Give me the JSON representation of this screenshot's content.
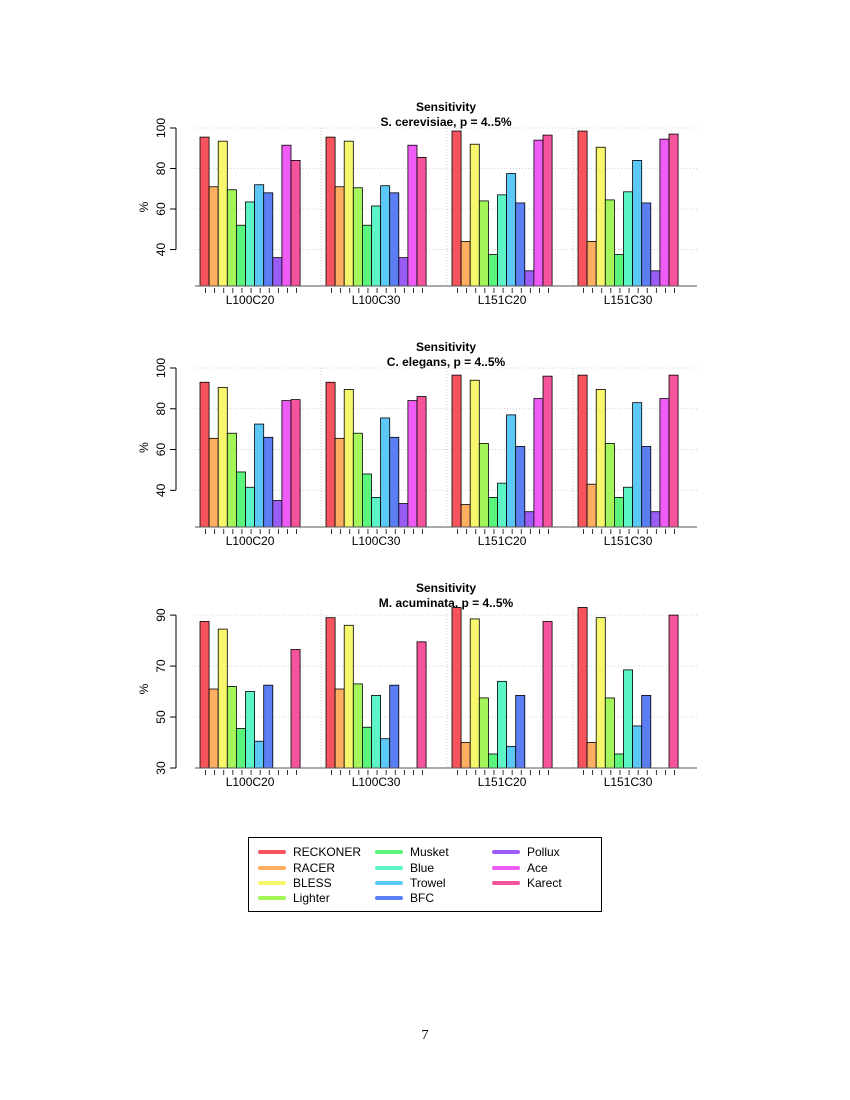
{
  "series": [
    {
      "name": "RECKONER",
      "color": "#f5545c"
    },
    {
      "name": "RACER",
      "color": "#fdae61"
    },
    {
      "name": "BLESS",
      "color": "#f7f76e"
    },
    {
      "name": "Lighter",
      "color": "#a3f55a"
    },
    {
      "name": "Musket",
      "color": "#5cf57c"
    },
    {
      "name": "Blue",
      "color": "#5cf5c8"
    },
    {
      "name": "Trowel",
      "color": "#5cc8f5"
    },
    {
      "name": "BFC",
      "color": "#5c7ef5"
    },
    {
      "name": "Pollux",
      "color": "#9a5cf5"
    },
    {
      "name": "Ace",
      "color": "#ef5cf5"
    },
    {
      "name": "Karect",
      "color": "#f5549c"
    }
  ],
  "chart_data": [
    {
      "type": "bar",
      "title": "Sensitivity",
      "subtitle": "S. cerevisiae, p = 4..5%",
      "ylabel": "%",
      "ylim": [
        22,
        100
      ],
      "yticks": [
        "40",
        "60",
        "80",
        "100"
      ],
      "categories": [
        "L100C20",
        "L100C30",
        "L151C20",
        "L151C30"
      ],
      "values": [
        [
          95.5,
          71,
          93.5,
          69.5,
          52,
          63.5,
          72,
          68,
          36,
          91.5,
          84
        ],
        [
          95.5,
          71,
          93.5,
          70.5,
          52,
          61.5,
          71.5,
          68,
          36,
          91.5,
          85.5
        ],
        [
          98.5,
          44,
          92,
          64,
          37.5,
          67,
          77.5,
          63,
          29.5,
          94,
          96.5
        ],
        [
          98.5,
          44,
          90.5,
          64.5,
          37.5,
          68.5,
          84,
          63,
          29.5,
          94.5,
          97
        ]
      ]
    },
    {
      "type": "bar",
      "title": "Sensitivity",
      "subtitle": "C. elegans, p = 4..5%",
      "ylabel": "%",
      "ylim": [
        22,
        100
      ],
      "yticks": [
        "40",
        "60",
        "80",
        "100"
      ],
      "categories": [
        "L100C20",
        "L100C30",
        "L151C20",
        "L151C30"
      ],
      "values": [
        [
          93,
          65.5,
          90.5,
          68,
          49,
          41.5,
          72.5,
          66,
          35,
          84,
          84.5
        ],
        [
          93,
          65.5,
          89.5,
          68,
          48,
          36.5,
          75.5,
          66,
          33.5,
          84,
          86
        ],
        [
          96.5,
          33,
          94,
          63,
          36.5,
          43.5,
          77,
          61.5,
          29.5,
          85,
          96
        ],
        [
          96.5,
          43,
          89.5,
          63,
          36.5,
          41.5,
          83,
          61.5,
          29.5,
          85,
          96.5
        ]
      ]
    },
    {
      "type": "bar",
      "title": "Sensitivity",
      "subtitle": "M. acuminata, p = 4..5%",
      "ylabel": "%",
      "ylim": [
        30,
        92
      ],
      "yticks": [
        "30",
        "50",
        "70",
        "90"
      ],
      "categories": [
        "L100C20",
        "L100C30",
        "L151C20",
        "L151C30"
      ],
      "values": [
        [
          87.5,
          61,
          84.5,
          62,
          45.5,
          60,
          40.5,
          62.5,
          null,
          null,
          76.5
        ],
        [
          89,
          61,
          86,
          63,
          46,
          58.5,
          41.5,
          62.5,
          null,
          null,
          79.5
        ],
        [
          93,
          40,
          88.5,
          57.5,
          35.5,
          64,
          38.5,
          58.5,
          null,
          null,
          87.5
        ],
        [
          93,
          40,
          89,
          57.5,
          35.5,
          68.5,
          46.5,
          58.5,
          null,
          null,
          90
        ]
      ]
    }
  ],
  "page_number": "7"
}
